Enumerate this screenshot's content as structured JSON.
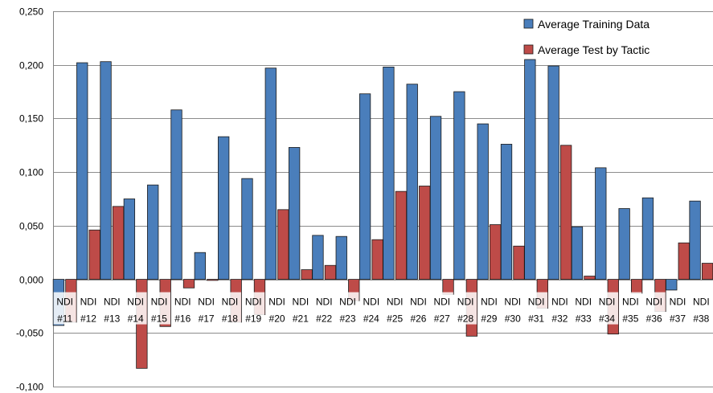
{
  "chart_data": {
    "type": "bar",
    "title": "",
    "xlabel": "",
    "ylabel": "",
    "ylim": [
      -0.1,
      0.25
    ],
    "yticks": [
      -0.1,
      -0.05,
      0.0,
      0.05,
      0.1,
      0.15,
      0.2,
      0.25
    ],
    "ytick_labels": [
      "-0,100",
      "-0,050",
      "0,000",
      "0,050",
      "0,100",
      "0,150",
      "0,200",
      "0,250"
    ],
    "grid": true,
    "legend_position": "top-right",
    "categories": [
      "NDI #11",
      "NDI #12",
      "NDI #13",
      "NDI #14",
      "NDI #15",
      "NDI #16",
      "NDI #17",
      "NDI #18",
      "NDI #19",
      "NDI #20",
      "NDI #21",
      "NDI #22",
      "NDI #23",
      "NDI #24",
      "NDI #25",
      "NDI #26",
      "NDI #27",
      "NDI #28",
      "NDI #29",
      "NDI #30",
      "NDI #31",
      "NDI #32",
      "NDI #33",
      "NDI #34",
      "NDI #35",
      "NDI #36",
      "NDI #37",
      "NDI #38"
    ],
    "series": [
      {
        "name": "Average Training Data",
        "color": "#4a7ebb",
        "values": [
          -0.043,
          0.202,
          0.203,
          0.075,
          0.088,
          0.158,
          0.025,
          0.133,
          0.094,
          0.197,
          0.123,
          0.041,
          0.04,
          0.173,
          0.198,
          0.182,
          0.152,
          0.175,
          0.145,
          0.126,
          0.205,
          0.199,
          0.049,
          0.104,
          0.066,
          0.076,
          -0.01,
          0.073
        ]
      },
      {
        "name": "Average Test by Tactic",
        "color": "#be4b48",
        "values": [
          -0.04,
          0.046,
          0.068,
          -0.083,
          -0.044,
          -0.008,
          -0.001,
          -0.04,
          -0.033,
          0.065,
          0.009,
          0.013,
          -0.02,
          0.037,
          0.082,
          0.087,
          -0.014,
          -0.053,
          0.051,
          0.031,
          -0.027,
          0.125,
          0.003,
          -0.051,
          -0.013,
          -0.03,
          0.034,
          0.015
        ]
      }
    ]
  }
}
